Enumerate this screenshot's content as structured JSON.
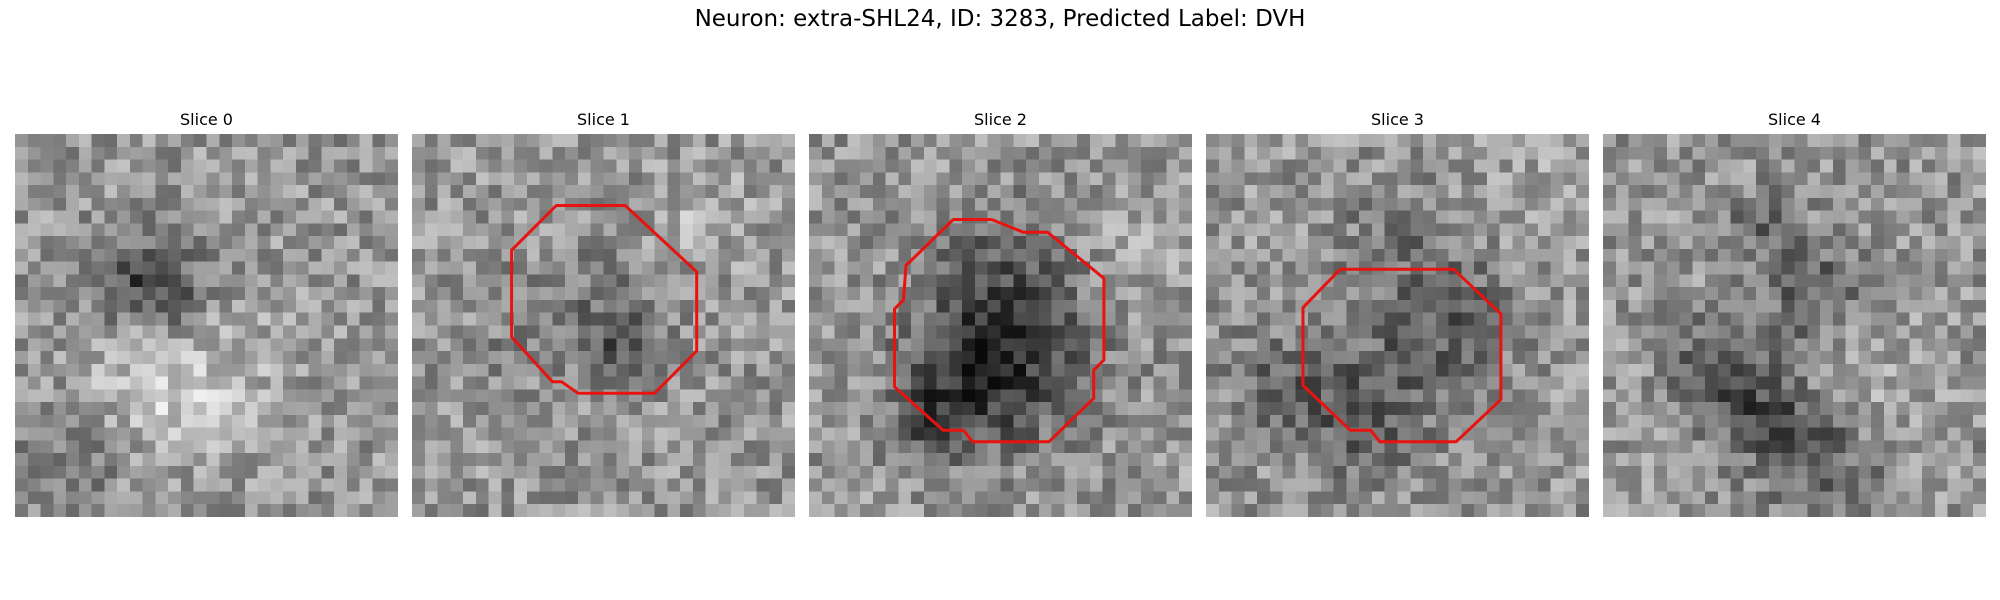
{
  "figure": {
    "title": "Neuron: extra-SHL24, ID: 3283, Predicted Label: DVH"
  },
  "overlay_color": "#e8130f",
  "slices": [
    {
      "title": "Slice 0",
      "seed": 11,
      "has_outline": false
    },
    {
      "title": "Slice 1",
      "seed": 23,
      "has_outline": true
    },
    {
      "title": "Slice 2",
      "seed": 37,
      "has_outline": true
    },
    {
      "title": "Slice 3",
      "seed": 51,
      "has_outline": true
    },
    {
      "title": "Slice 4",
      "seed": 67,
      "has_outline": false
    }
  ]
}
